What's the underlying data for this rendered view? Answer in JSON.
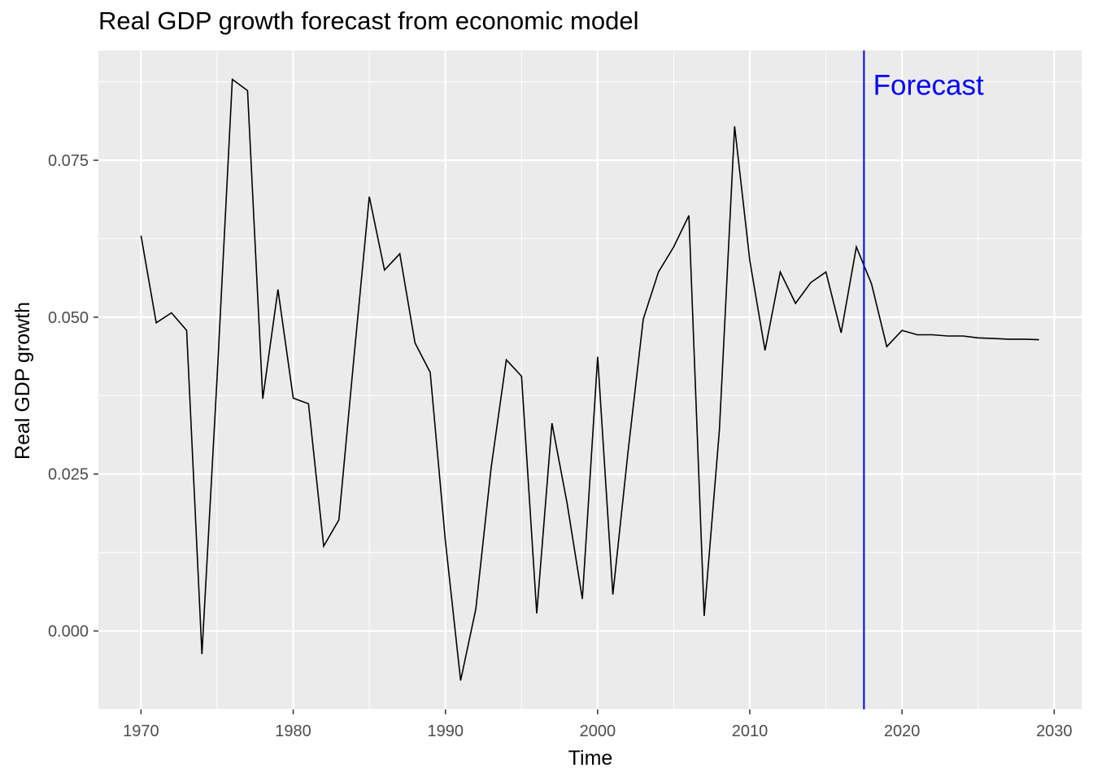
{
  "chart_data": {
    "type": "line",
    "title": "Real GDP growth forecast from economic model",
    "xlabel": "Time",
    "ylabel": "Real GDP growth",
    "xlim": [
      1967.2,
      2031.8
    ],
    "ylim": [
      -0.0125,
      0.0925
    ],
    "x_ticks": [
      1970,
      1980,
      1990,
      2000,
      2010,
      2020,
      2030
    ],
    "x_tick_labels": [
      "1970",
      "1980",
      "1990",
      "2000",
      "2010",
      "2020",
      "2030"
    ],
    "y_ticks": [
      0,
      0.025,
      0.05,
      0.075
    ],
    "y_tick_labels": [
      "0.000",
      "0.025",
      "0.050",
      "0.075"
    ],
    "grid": true,
    "panel_background": "#ebebeb",
    "grid_color": "#ffffff",
    "series": [
      {
        "color": "#000000",
        "x": [
          1970,
          1971,
          1972,
          1973,
          1974,
          1975,
          1976,
          1977,
          1978,
          1979,
          1980,
          1981,
          1982,
          1983,
          1984,
          1985,
          1986,
          1987,
          1988,
          1989,
          1990,
          1991,
          1992,
          1993,
          1994,
          1995,
          1996,
          1997,
          1998,
          1999,
          2000,
          2001,
          2002,
          2003,
          2004,
          2005,
          2006,
          2007,
          2008,
          2009,
          2010,
          2011,
          2012,
          2013,
          2014,
          2015,
          2016,
          2017,
          2018,
          2019,
          2020,
          2021,
          2022,
          2023,
          2024,
          2025,
          2026,
          2027,
          2028,
          2029
        ],
        "values": [
          0.063,
          0.0491,
          0.0507,
          0.0479,
          -0.0037,
          0.0405,
          0.0879,
          0.0861,
          0.037,
          0.0544,
          0.0371,
          0.0362,
          0.0135,
          0.0177,
          0.0438,
          0.0692,
          0.0575,
          0.0601,
          0.0459,
          0.0412,
          0.0143,
          -0.0079,
          0.0035,
          0.026,
          0.0432,
          0.0406,
          0.0028,
          0.0331,
          0.0203,
          0.0051,
          0.0437,
          0.0058,
          0.0286,
          0.0497,
          0.0572,
          0.0612,
          0.0662,
          0.0024,
          0.032,
          0.0804,
          0.059,
          0.0447,
          0.0572,
          0.0522,
          0.0555,
          0.0572,
          0.0475,
          0.0612,
          0.0553,
          0.0453,
          0.0479,
          0.0472,
          0.0472,
          0.047,
          0.047,
          0.0467,
          0.0466,
          0.0465,
          0.0465,
          0.0464
        ]
      }
    ],
    "vline": {
      "x": 2017.5,
      "color": "#0000ff"
    },
    "annotation": {
      "text": "Forecast",
      "x": 2018.1,
      "y": 0.087,
      "color": "#0000ff"
    }
  }
}
